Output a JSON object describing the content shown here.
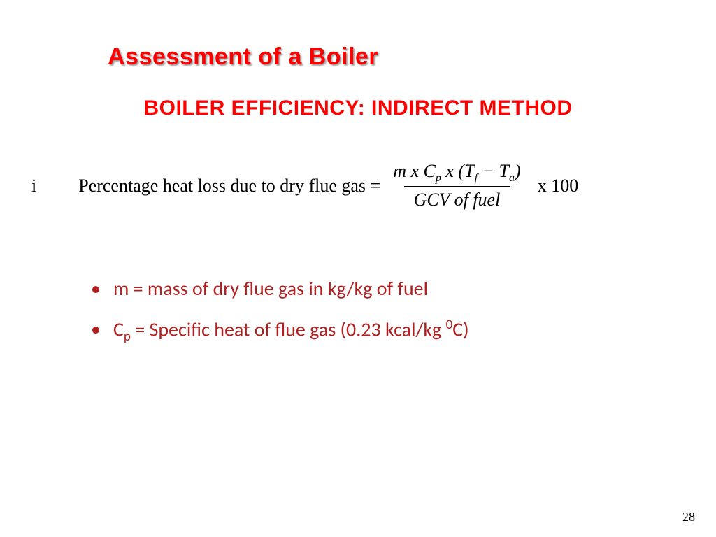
{
  "title": "Assessment of a Boiler",
  "subtitle": "BOILER EFFICIENCY: INDIRECT METHOD",
  "formula": {
    "index": "i",
    "label": "Percentage heat loss due to dry flue gas = ",
    "numerator_prefix": "m x C",
    "numerator_sub1": "p",
    "numerator_mid": " x (T",
    "numerator_sub2": "f",
    "numerator_minus": " − T",
    "numerator_sub3": "a",
    "numerator_close": ")",
    "denominator": "GCV of  fuel",
    "suffix": " x 100"
  },
  "bullets": [
    {
      "prefix": "m = mass of dry flue gas in kg/kg of fuel",
      "has_sub": false
    },
    {
      "sym": "C",
      "sub": "p",
      "rest": " = Specific heat of flue gas (0.23 kcal/kg ",
      "sup": "0",
      "tail": "C)",
      "has_sub": true
    }
  ],
  "page_number": "28",
  "colors": {
    "title": "#ff0000",
    "bullet_text": "#b02020",
    "background": "#ffffff",
    "formula_text": "#000000"
  }
}
